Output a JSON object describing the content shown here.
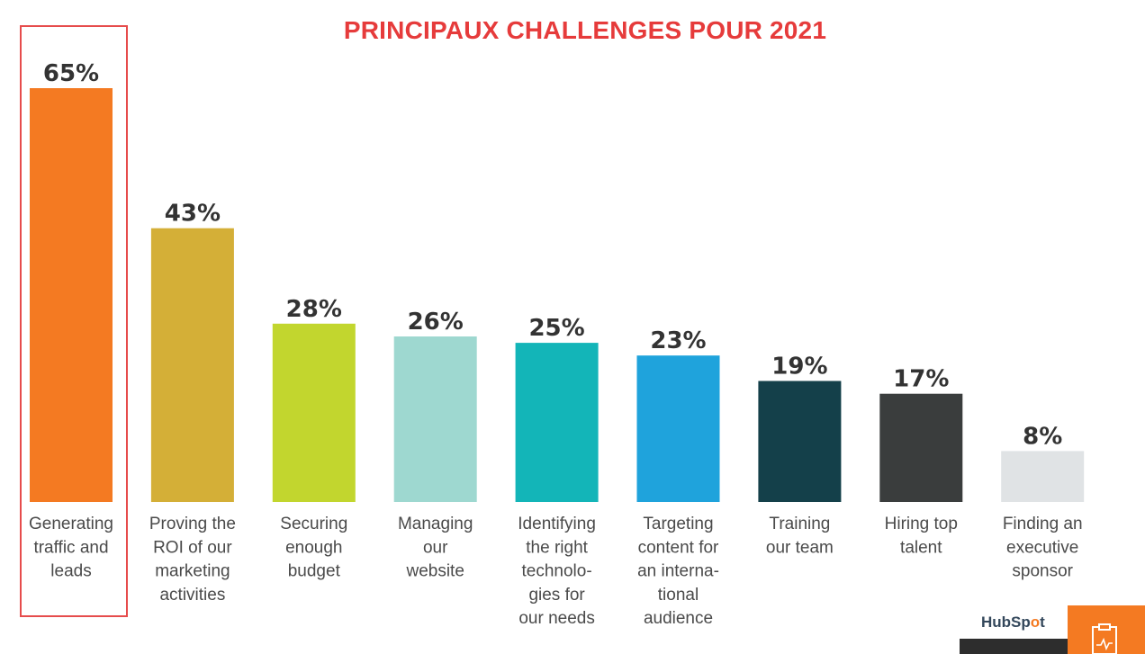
{
  "chart_data": {
    "type": "bar",
    "title": "PRINCIPAUX CHALLENGES POUR 2021",
    "categories": [
      [
        "Generating",
        "traffic and",
        "leads"
      ],
      [
        "Proving the",
        "ROI of our",
        "marketing",
        "activities"
      ],
      [
        "Securing",
        "enough",
        "budget"
      ],
      [
        "Managing",
        "our",
        "website"
      ],
      [
        "Identifying",
        "the right",
        "technolo-",
        "gies for",
        "our needs"
      ],
      [
        "Targeting",
        "content for",
        "an interna-",
        "tional",
        "audience"
      ],
      [
        "Training",
        "our team"
      ],
      [
        "Hiring top",
        "talent"
      ],
      [
        "Finding an",
        "executive",
        "sponsor"
      ]
    ],
    "values": [
      65,
      43,
      28,
      26,
      25,
      23,
      19,
      17,
      8
    ],
    "value_labels": [
      "65%",
      "43%",
      "28%",
      "26%",
      "25%",
      "23%",
      "19%",
      "17%",
      "8%"
    ],
    "colors": [
      "#f47a22",
      "#d4af37",
      "#c2d62e",
      "#9ed8d0",
      "#13b5b8",
      "#1fa3dc",
      "#14404a",
      "#3a3d3d",
      "#e0e3e5"
    ],
    "ylim": [
      0,
      65
    ],
    "grid": false,
    "legend": "none",
    "highlight_index": 0,
    "highlight_color": "#e64c4c"
  },
  "branding": {
    "logo_text_a": "HubSp",
    "logo_text_dot": "o",
    "logo_text_b": "t",
    "accent_color": "#f47a22"
  }
}
